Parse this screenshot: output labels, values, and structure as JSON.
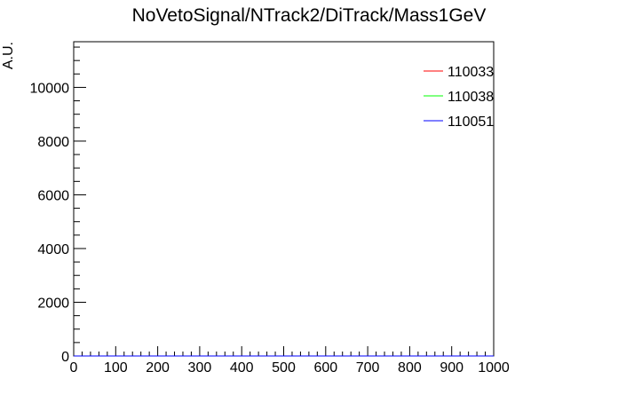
{
  "chart_data": {
    "type": "line",
    "title": "NoVetoSignal/NTrack2/DiTrack/Mass1GeV",
    "xlabel": "",
    "ylabel": "A.U.",
    "xlim": [
      0,
      1000
    ],
    "ylim": [
      0,
      11700
    ],
    "x_ticks": [
      0,
      100,
      200,
      300,
      400,
      500,
      600,
      700,
      800,
      900,
      1000
    ],
    "y_ticks": [
      0,
      2000,
      4000,
      6000,
      8000,
      10000
    ],
    "x_tick_labels": [
      "0",
      "100",
      "200",
      "300",
      "400",
      "500",
      "600",
      "700",
      "800",
      "900",
      "1000"
    ],
    "y_tick_labels": [
      "0",
      "2000",
      "4000",
      "6000",
      "8000",
      "10000"
    ],
    "legend_position": "top-right",
    "grid": false,
    "series": [
      {
        "name": "110033",
        "color": "#ff0000",
        "x": [
          0,
          1000
        ],
        "y": [
          0,
          0
        ]
      },
      {
        "name": "110038",
        "color": "#00ff00",
        "x": [
          0,
          1000
        ],
        "y": [
          0,
          0
        ]
      },
      {
        "name": "110051",
        "color": "#0000ff",
        "x": [
          0,
          1000
        ],
        "y": [
          0,
          0
        ]
      }
    ]
  }
}
